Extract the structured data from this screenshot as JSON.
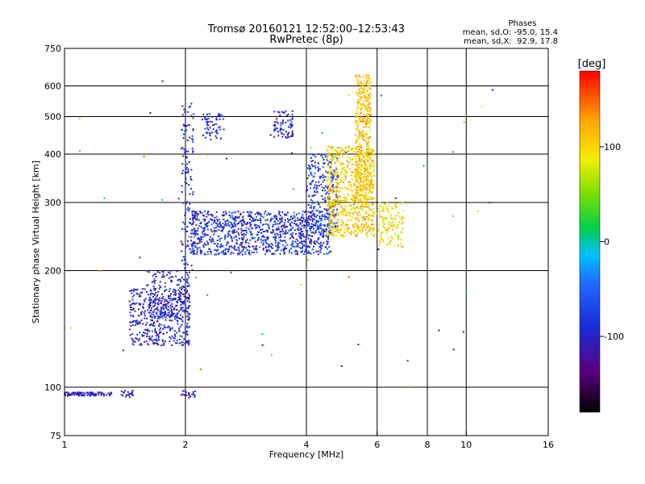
{
  "chart_data": {
    "type": "scatter",
    "title": "Tromsø 20160121 12:52:00–12:53:43",
    "subtitle": "RwPretec (8p)",
    "info": {
      "heading": "Phases",
      "line1": "mean, sd,O: -95.0, 15.4",
      "line2": "mean, sd,X:  92.9, 17.8"
    },
    "xlabel": "Frequency [MHz]",
    "ylabel": "Stationary phase Virtual Height [km]",
    "xscale": "log",
    "yscale": "log",
    "xlim": [
      1,
      16
    ],
    "ylim": [
      75,
      750
    ],
    "xticks": [
      1,
      2,
      4,
      6,
      8,
      10,
      16
    ],
    "yticks": [
      75,
      100,
      200,
      300,
      400,
      500,
      600,
      750
    ],
    "xgrid": [
      2,
      4,
      6,
      8,
      10
    ],
    "ygrid": [
      100,
      200,
      300,
      400,
      500,
      600
    ],
    "grid": true,
    "colorbar": {
      "label": "[deg]",
      "range": [
        -180,
        180
      ],
      "ticks": [
        100,
        0,
        -100
      ],
      "placement": "right"
    },
    "point_groups": [
      {
        "xrange": [
          1.0,
          1.33
        ],
        "yrange": [
          95,
          97
        ],
        "count": 90,
        "phase": [
          -120,
          -90
        ]
      },
      {
        "xrange": [
          1.38,
          1.5
        ],
        "yrange": [
          94,
          98
        ],
        "count": 20,
        "phase": [
          -120,
          -80
        ]
      },
      {
        "xrange": [
          1.95,
          2.12
        ],
        "yrange": [
          94,
          98
        ],
        "count": 20,
        "phase": [
          -120,
          -80
        ]
      },
      {
        "xrange": [
          1.45,
          2.05
        ],
        "yrange": [
          128,
          180
        ],
        "count": 420,
        "phase": [
          -130,
          -60
        ]
      },
      {
        "xrange": [
          1.6,
          2.05
        ],
        "yrange": [
          150,
          200
        ],
        "count": 180,
        "phase": [
          -130,
          -60
        ]
      },
      {
        "xrange": [
          1.95,
          2.1
        ],
        "yrange": [
          200,
          540
        ],
        "count": 120,
        "phase": [
          -120,
          -70
        ]
      },
      {
        "xrange": [
          2.05,
          4.6
        ],
        "yrange": [
          220,
          285
        ],
        "count": 1000,
        "phase": [
          -130,
          -40
        ]
      },
      {
        "xrange": [
          2.2,
          2.5
        ],
        "yrange": [
          435,
          510
        ],
        "count": 60,
        "phase": [
          -120,
          -60
        ]
      },
      {
        "xrange": [
          3.3,
          3.7
        ],
        "yrange": [
          440,
          520
        ],
        "count": 70,
        "phase": [
          -120,
          -70
        ]
      },
      {
        "xrange": [
          4.0,
          4.8
        ],
        "yrange": [
          250,
          400
        ],
        "count": 260,
        "phase": [
          -120,
          -40
        ]
      },
      {
        "xrange": [
          4.5,
          5.9
        ],
        "yrange": [
          245,
          420
        ],
        "count": 700,
        "phase": [
          70,
          140
        ]
      },
      {
        "xrange": [
          5.3,
          5.8
        ],
        "yrange": [
          300,
          640
        ],
        "count": 400,
        "phase": [
          80,
          140
        ]
      },
      {
        "xrange": [
          6.0,
          7.0
        ],
        "yrange": [
          230,
          300
        ],
        "count": 120,
        "phase": [
          60,
          130
        ]
      },
      {
        "xrange": [
          1.0,
          13.0
        ],
        "yrange": [
          95,
          620
        ],
        "count": 60,
        "phase": [
          -180,
          180
        ]
      }
    ]
  }
}
